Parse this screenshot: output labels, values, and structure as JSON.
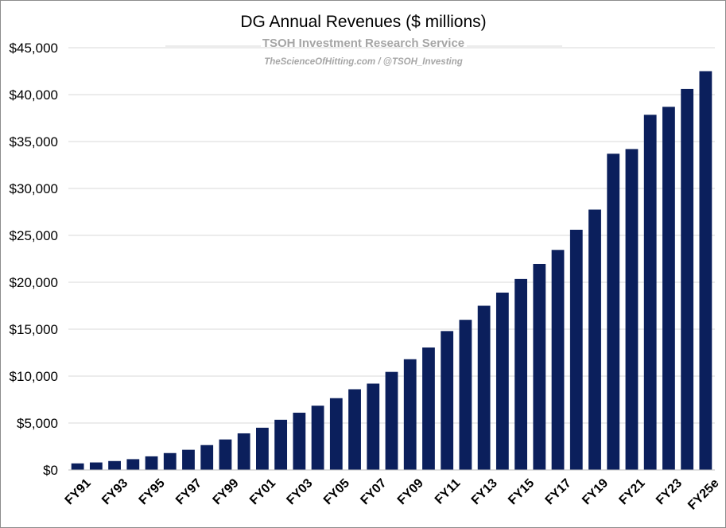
{
  "chart_data": {
    "type": "bar",
    "title": "DG Annual Revenues ($ millions)",
    "subtitle": "TSOH Investment Research Service",
    "credit": "TheScienceOfHitting.com / @TSOH_Investing",
    "xlabel": "",
    "ylabel": "",
    "ylim": [
      0,
      45000
    ],
    "yticks": [
      0,
      5000,
      10000,
      15000,
      20000,
      25000,
      30000,
      35000,
      40000,
      45000
    ],
    "ytick_labels": [
      "$0",
      "$5,000",
      "$10,000",
      "$15,000",
      "$20,000",
      "$25,000",
      "$30,000",
      "$35,000",
      "$40,000",
      "$45,000"
    ],
    "grid": true,
    "legend": "none",
    "categories": [
      "FY91",
      "FY92",
      "FY93",
      "FY94",
      "FY95",
      "FY96",
      "FY97",
      "FY98",
      "FY99",
      "FY00",
      "FY01",
      "FY02",
      "FY03",
      "FY04",
      "FY05",
      "FY06",
      "FY07",
      "FY08",
      "FY09",
      "FY10",
      "FY11",
      "FY12",
      "FY13",
      "FY14",
      "FY15",
      "FY16",
      "FY17",
      "FY18",
      "FY19",
      "FY20",
      "FY21",
      "FY22",
      "FY23",
      "FY24",
      "FY25e"
    ],
    "x_tick_labels": [
      "FY91",
      "",
      "FY93",
      "",
      "FY95",
      "",
      "FY97",
      "",
      "FY99",
      "",
      "FY01",
      "",
      "FY03",
      "",
      "FY05",
      "",
      "FY07",
      "",
      "FY09",
      "",
      "FY11",
      "",
      "FY13",
      "",
      "FY15",
      "",
      "FY17",
      "",
      "FY19",
      "",
      "FY21",
      "",
      "FY23",
      "",
      "FY25e"
    ],
    "values": [
      700,
      800,
      950,
      1150,
      1450,
      1800,
      2150,
      2650,
      3250,
      3900,
      4500,
      5350,
      6100,
      6850,
      7650,
      8600,
      9200,
      10450,
      11800,
      13050,
      14800,
      16000,
      17500,
      18900,
      20350,
      21950,
      23450,
      25600,
      27750,
      33700,
      34200,
      37850,
      38700,
      40600,
      42500
    ],
    "bar_color": "#0b1f5c"
  }
}
